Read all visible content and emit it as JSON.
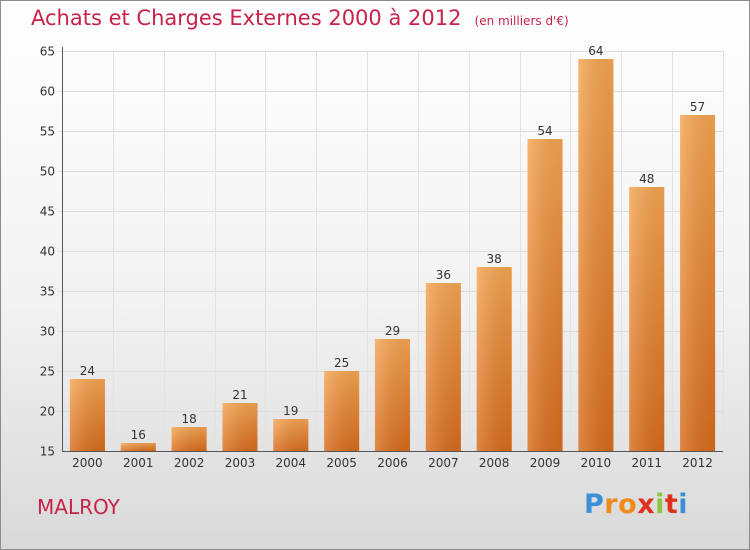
{
  "chart_data": {
    "type": "bar",
    "title": "Achats et Charges Externes 2000 à 2012",
    "unit_label": "(en milliers d'€)",
    "categories": [
      "2000",
      "2001",
      "2002",
      "2003",
      "2004",
      "2005",
      "2006",
      "2007",
      "2008",
      "2009",
      "2010",
      "2011",
      "2012"
    ],
    "values": [
      24,
      16,
      18,
      21,
      19,
      25,
      29,
      36,
      38,
      54,
      64,
      48,
      57
    ],
    "ylim": [
      15,
      65
    ],
    "yticks": [
      15,
      20,
      25,
      30,
      35,
      40,
      45,
      50,
      55,
      60,
      65
    ],
    "grid": true,
    "bar_color": "#f0963e",
    "data_labels": true
  },
  "commune": "MALROY",
  "brand": {
    "letters": [
      "P",
      "r",
      "o",
      "x",
      "i",
      "t",
      "i"
    ],
    "colors": [
      "#3a8fd6",
      "#f08a1c",
      "#f08a1c",
      "#e0301e",
      "#8cc43c",
      "#e0301e",
      "#3a8fd6"
    ]
  },
  "title_color": "#c8224a"
}
